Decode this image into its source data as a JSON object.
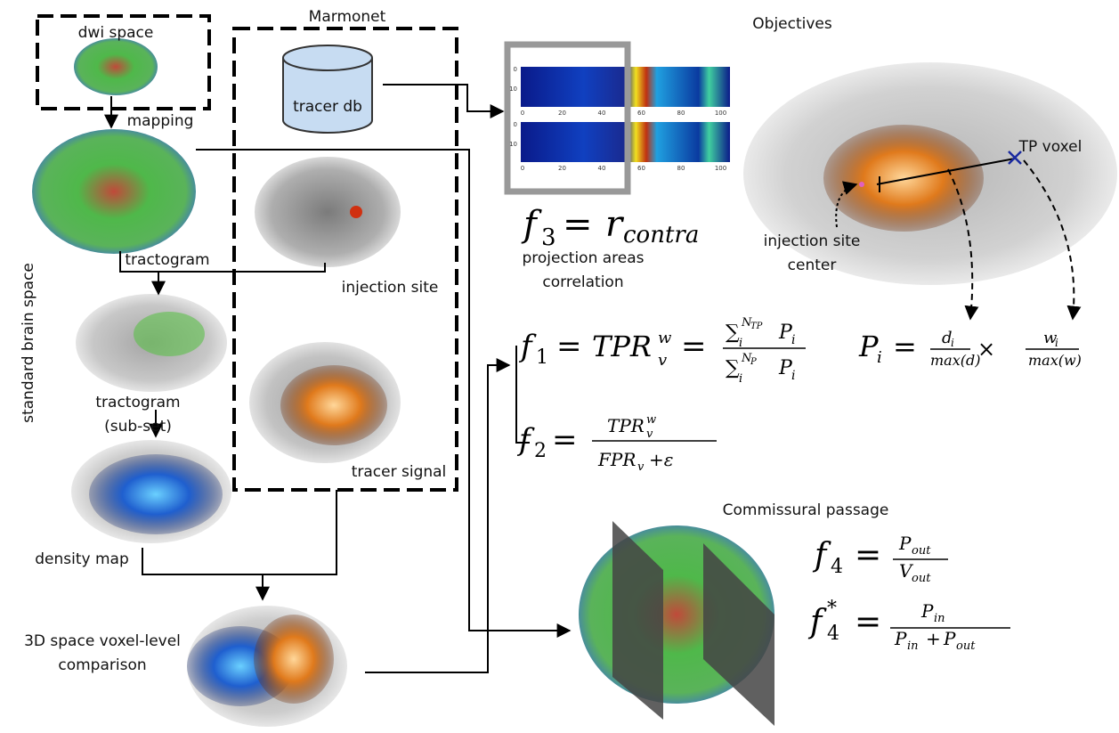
{
  "pipeline": {
    "dwi_space": "dwi space",
    "mapping": "mapping",
    "marmonet": "Marmonet",
    "tracer_db": "tracer db",
    "tractogram": "tractogram",
    "injection_site": "injection site",
    "standard_brain_space": "standard brain space",
    "tractogram_subset": [
      "tractogram",
      "(sub-set)"
    ],
    "tracer_signal": "tracer signal",
    "density_map": "density map",
    "comparison": [
      "3D space voxel-level",
      "comparison"
    ]
  },
  "heatmap": {
    "y_ticks": [
      "0",
      "10"
    ],
    "x_ticks": [
      "0",
      "20",
      "40",
      "60",
      "80",
      "100"
    ]
  },
  "objectives": {
    "title": "Objectives",
    "tp_voxel": "TP voxel",
    "injection_center": [
      "injection site",
      "center"
    ],
    "projection": [
      "projection areas",
      "correlation"
    ],
    "commissural": "Commissural passage"
  },
  "formulas": {
    "f3": [
      "f",
      "3",
      "=",
      "r",
      "contra"
    ],
    "f1": [
      "f",
      "1",
      "=",
      "TPR",
      "w",
      "v",
      "=",
      "∑",
      "i",
      "N",
      "TP",
      "P",
      "i",
      "∑",
      "i",
      "N",
      "P",
      "P",
      "i"
    ],
    "pi": [
      "P",
      "i",
      "=",
      "d",
      "i",
      "max(d)",
      "×",
      "w",
      "i",
      "max(w)"
    ],
    "f2": [
      "f",
      "2",
      "=",
      "TPR",
      "w",
      "v",
      "FPR",
      "v",
      "+ε"
    ],
    "f4": [
      "f",
      "4",
      "=",
      "P",
      "out",
      "V",
      "out"
    ],
    "f4s": [
      "f",
      "4",
      "*",
      "=",
      "P",
      "in",
      "P",
      "in",
      "+",
      "P",
      "out"
    ]
  }
}
